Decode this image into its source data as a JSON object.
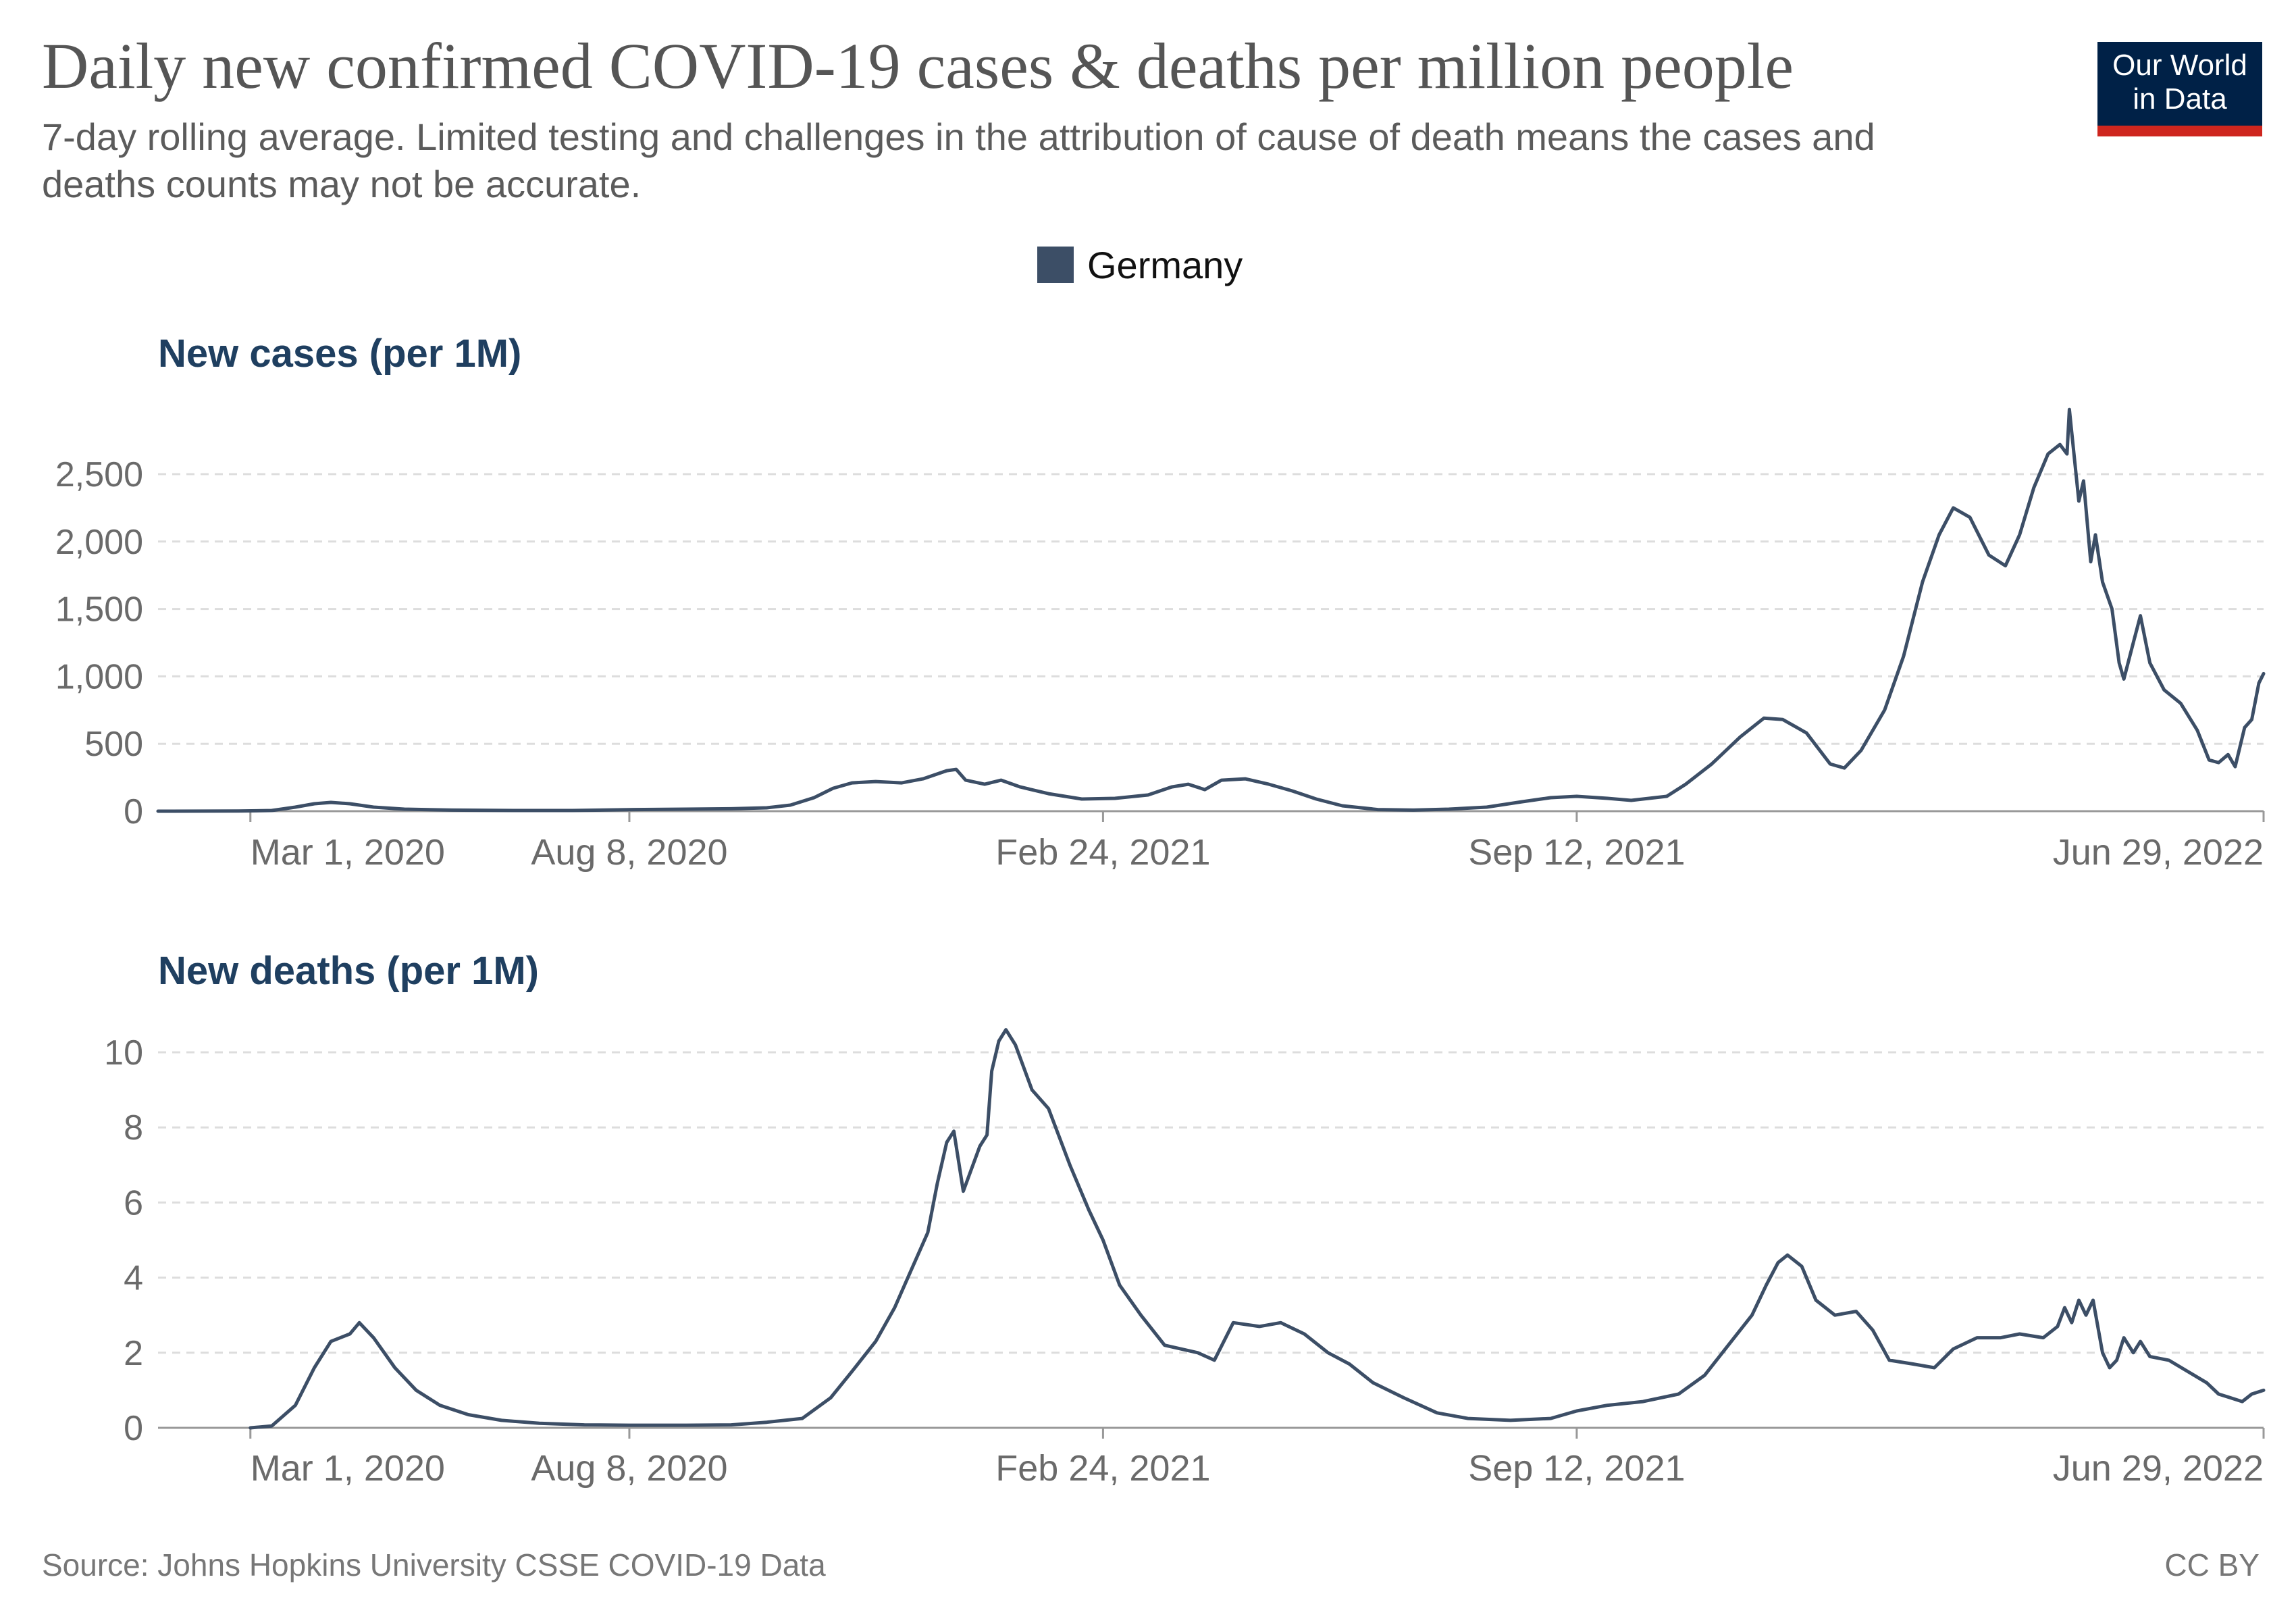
{
  "title": "Daily new confirmed COVID-19 cases & deaths per million people",
  "subtitle": "7-day rolling average. Limited testing and challenges in the attribution of cause of death means the cases and deaths counts may not be accurate.",
  "logo": {
    "line1": "Our World",
    "line2": "in Data"
  },
  "source": "Source: Johns Hopkins University CSSE COVID-19 Data",
  "license": "CC BY",
  "colors": {
    "series": "#3c4e66",
    "logo_bg": "#002147",
    "logo_bar": "#ce261e",
    "panel_title": "#1f3f60"
  },
  "chart_data": [
    {
      "type": "line",
      "title": "New cases (per 1M)",
      "legend": [
        "Germany"
      ],
      "x_tick_labels": [
        "Mar 1, 2020",
        "Aug 8, 2020",
        "Feb 24, 2021",
        "Sep 12, 2021",
        "Jun 29, 2022"
      ],
      "xlim": [
        "2020-01-22",
        "2022-06-29"
      ],
      "y_ticks": [
        0,
        500,
        1000,
        1500,
        2000,
        2500
      ],
      "y_tick_labels": [
        "0",
        "500",
        "1,000",
        "1,500",
        "2,000",
        "2,500"
      ],
      "ylim": [
        0,
        2500
      ],
      "grid": "horizontal dashed",
      "series": [
        {
          "name": "Germany",
          "points": [
            [
              "2020-01-22",
              0
            ],
            [
              "2020-02-25",
              1
            ],
            [
              "2020-03-10",
              5
            ],
            [
              "2020-03-20",
              30
            ],
            [
              "2020-03-28",
              55
            ],
            [
              "2020-04-04",
              65
            ],
            [
              "2020-04-12",
              55
            ],
            [
              "2020-04-22",
              30
            ],
            [
              "2020-05-05",
              15
            ],
            [
              "2020-05-25",
              8
            ],
            [
              "2020-06-20",
              5
            ],
            [
              "2020-07-15",
              5
            ],
            [
              "2020-08-10",
              12
            ],
            [
              "2020-09-01",
              15
            ],
            [
              "2020-09-20",
              18
            ],
            [
              "2020-10-05",
              25
            ],
            [
              "2020-10-15",
              45
            ],
            [
              "2020-10-25",
              100
            ],
            [
              "2020-11-02",
              170
            ],
            [
              "2020-11-10",
              210
            ],
            [
              "2020-11-20",
              220
            ],
            [
              "2020-12-01",
              210
            ],
            [
              "2020-12-10",
              240
            ],
            [
              "2020-12-20",
              300
            ],
            [
              "2020-12-24",
              310
            ],
            [
              "2020-12-28",
              230
            ],
            [
              "2021-01-05",
              200
            ],
            [
              "2021-01-12",
              230
            ],
            [
              "2021-01-20",
              180
            ],
            [
              "2021-02-01",
              130
            ],
            [
              "2021-02-15",
              90
            ],
            [
              "2021-03-01",
              95
            ],
            [
              "2021-03-15",
              120
            ],
            [
              "2021-03-25",
              180
            ],
            [
              "2021-04-01",
              200
            ],
            [
              "2021-04-08",
              160
            ],
            [
              "2021-04-15",
              230
            ],
            [
              "2021-04-25",
              240
            ],
            [
              "2021-05-05",
              200
            ],
            [
              "2021-05-15",
              150
            ],
            [
              "2021-05-25",
              90
            ],
            [
              "2021-06-05",
              40
            ],
            [
              "2021-06-20",
              12
            ],
            [
              "2021-07-05",
              8
            ],
            [
              "2021-07-20",
              15
            ],
            [
              "2021-08-05",
              30
            ],
            [
              "2021-08-20",
              70
            ],
            [
              "2021-09-01",
              100
            ],
            [
              "2021-09-12",
              110
            ],
            [
              "2021-09-25",
              95
            ],
            [
              "2021-10-05",
              80
            ],
            [
              "2021-10-20",
              110
            ],
            [
              "2021-10-28",
              200
            ],
            [
              "2021-11-08",
              350
            ],
            [
              "2021-11-20",
              550
            ],
            [
              "2021-11-30",
              690
            ],
            [
              "2021-12-08",
              680
            ],
            [
              "2021-12-18",
              580
            ],
            [
              "2021-12-28",
              350
            ],
            [
              "2022-01-03",
              320
            ],
            [
              "2022-01-10",
              450
            ],
            [
              "2022-01-20",
              750
            ],
            [
              "2022-01-28",
              1150
            ],
            [
              "2022-02-05",
              1700
            ],
            [
              "2022-02-12",
              2050
            ],
            [
              "2022-02-18",
              2250
            ],
            [
              "2022-02-25",
              2180
            ],
            [
              "2022-03-05",
              1900
            ],
            [
              "2022-03-12",
              1820
            ],
            [
              "2022-03-18",
              2050
            ],
            [
              "2022-03-24",
              2400
            ],
            [
              "2022-03-30",
              2650
            ],
            [
              "2022-04-04",
              2720
            ],
            [
              "2022-04-07",
              2650
            ],
            [
              "2022-04-08",
              2980
            ],
            [
              "2022-04-12",
              2300
            ],
            [
              "2022-04-14",
              2450
            ],
            [
              "2022-04-17",
              1850
            ],
            [
              "2022-04-19",
              2050
            ],
            [
              "2022-04-22",
              1700
            ],
            [
              "2022-04-26",
              1500
            ],
            [
              "2022-04-29",
              1100
            ],
            [
              "2022-05-01",
              980
            ],
            [
              "2022-05-05",
              1250
            ],
            [
              "2022-05-08",
              1450
            ],
            [
              "2022-05-12",
              1100
            ],
            [
              "2022-05-18",
              900
            ],
            [
              "2022-05-25",
              800
            ],
            [
              "2022-06-01",
              600
            ],
            [
              "2022-06-06",
              380
            ],
            [
              "2022-06-10",
              360
            ],
            [
              "2022-06-14",
              420
            ],
            [
              "2022-06-17",
              330
            ],
            [
              "2022-06-21",
              620
            ],
            [
              "2022-06-24",
              680
            ],
            [
              "2022-06-27",
              950
            ],
            [
              "2022-06-29",
              1020
            ]
          ]
        }
      ]
    },
    {
      "type": "line",
      "title": "New deaths (per 1M)",
      "legend": [
        "Germany"
      ],
      "x_tick_labels": [
        "Mar 1, 2020",
        "Aug 8, 2020",
        "Feb 24, 2021",
        "Sep 12, 2021",
        "Jun 29, 2022"
      ],
      "xlim": [
        "2020-01-22",
        "2022-06-29"
      ],
      "y_ticks": [
        0,
        2,
        4,
        6,
        8,
        10
      ],
      "y_tick_labels": [
        "0",
        "2",
        "4",
        "6",
        "8",
        "10"
      ],
      "ylim": [
        0,
        10
      ],
      "grid": "horizontal dashed",
      "series": [
        {
          "name": "Germany",
          "points": [
            [
              "2020-03-01",
              0
            ],
            [
              "2020-03-10",
              0.05
            ],
            [
              "2020-03-20",
              0.6
            ],
            [
              "2020-03-28",
              1.6
            ],
            [
              "2020-04-04",
              2.3
            ],
            [
              "2020-04-12",
              2.5
            ],
            [
              "2020-04-16",
              2.8
            ],
            [
              "2020-04-22",
              2.4
            ],
            [
              "2020-05-01",
              1.6
            ],
            [
              "2020-05-10",
              1.0
            ],
            [
              "2020-05-20",
              0.6
            ],
            [
              "2020-06-01",
              0.35
            ],
            [
              "2020-06-15",
              0.2
            ],
            [
              "2020-07-01",
              0.12
            ],
            [
              "2020-07-20",
              0.08
            ],
            [
              "2020-08-08",
              0.07
            ],
            [
              "2020-09-01",
              0.07
            ],
            [
              "2020-09-20",
              0.08
            ],
            [
              "2020-10-05",
              0.15
            ],
            [
              "2020-10-20",
              0.25
            ],
            [
              "2020-11-01",
              0.8
            ],
            [
              "2020-11-10",
              1.5
            ],
            [
              "2020-11-20",
              2.3
            ],
            [
              "2020-11-28",
              3.2
            ],
            [
              "2020-12-05",
              4.2
            ],
            [
              "2020-12-12",
              5.2
            ],
            [
              "2020-12-16",
              6.5
            ],
            [
              "2020-12-20",
              7.6
            ],
            [
              "2020-12-23",
              7.9
            ],
            [
              "2020-12-27",
              6.3
            ],
            [
              "2021-01-03",
              7.5
            ],
            [
              "2021-01-06",
              7.8
            ],
            [
              "2021-01-08",
              9.5
            ],
            [
              "2021-01-11",
              10.3
            ],
            [
              "2021-01-14",
              10.6
            ],
            [
              "2021-01-18",
              10.2
            ],
            [
              "2021-01-25",
              9.0
            ],
            [
              "2021-02-01",
              8.5
            ],
            [
              "2021-02-10",
              7.0
            ],
            [
              "2021-02-18",
              5.8
            ],
            [
              "2021-02-24",
              5.0
            ],
            [
              "2021-03-03",
              3.8
            ],
            [
              "2021-03-12",
              3.0
            ],
            [
              "2021-03-22",
              2.2
            ],
            [
              "2021-04-05",
              2.0
            ],
            [
              "2021-04-12",
              1.8
            ],
            [
              "2021-04-20",
              2.8
            ],
            [
              "2021-05-01",
              2.7
            ],
            [
              "2021-05-10",
              2.8
            ],
            [
              "2021-05-20",
              2.5
            ],
            [
              "2021-05-30",
              2.0
            ],
            [
              "2021-06-08",
              1.7
            ],
            [
              "2021-06-18",
              1.2
            ],
            [
              "2021-07-01",
              0.8
            ],
            [
              "2021-07-15",
              0.4
            ],
            [
              "2021-07-28",
              0.25
            ],
            [
              "2021-08-15",
              0.2
            ],
            [
              "2021-09-01",
              0.25
            ],
            [
              "2021-09-12",
              0.45
            ],
            [
              "2021-09-25",
              0.6
            ],
            [
              "2021-10-10",
              0.7
            ],
            [
              "2021-10-25",
              0.9
            ],
            [
              "2021-11-05",
              1.4
            ],
            [
              "2021-11-15",
              2.2
            ],
            [
              "2021-11-25",
              3.0
            ],
            [
              "2021-12-01",
              3.8
            ],
            [
              "2021-12-06",
              4.4
            ],
            [
              "2021-12-10",
              4.6
            ],
            [
              "2021-12-16",
              4.3
            ],
            [
              "2021-12-22",
              3.4
            ],
            [
              "2021-12-30",
              3.0
            ],
            [
              "2022-01-08",
              3.1
            ],
            [
              "2022-01-15",
              2.6
            ],
            [
              "2022-01-22",
              1.8
            ],
            [
              "2022-02-01",
              1.7
            ],
            [
              "2022-02-10",
              1.6
            ],
            [
              "2022-02-18",
              2.1
            ],
            [
              "2022-02-28",
              2.4
            ],
            [
              "2022-03-10",
              2.4
            ],
            [
              "2022-03-18",
              2.5
            ],
            [
              "2022-03-28",
              2.4
            ],
            [
              "2022-04-03",
              2.7
            ],
            [
              "2022-04-06",
              3.2
            ],
            [
              "2022-04-09",
              2.8
            ],
            [
              "2022-04-12",
              3.4
            ],
            [
              "2022-04-15",
              3.0
            ],
            [
              "2022-04-18",
              3.4
            ],
            [
              "2022-04-22",
              2.0
            ],
            [
              "2022-04-25",
              1.6
            ],
            [
              "2022-04-28",
              1.8
            ],
            [
              "2022-05-01",
              2.4
            ],
            [
              "2022-05-05",
              2.0
            ],
            [
              "2022-05-08",
              2.3
            ],
            [
              "2022-05-12",
              1.9
            ],
            [
              "2022-05-20",
              1.8
            ],
            [
              "2022-05-28",
              1.5
            ],
            [
              "2022-06-05",
              1.2
            ],
            [
              "2022-06-10",
              0.9
            ],
            [
              "2022-06-15",
              0.8
            ],
            [
              "2022-06-20",
              0.7
            ],
            [
              "2022-06-24",
              0.9
            ],
            [
              "2022-06-29",
              1.0
            ]
          ]
        }
      ]
    }
  ]
}
